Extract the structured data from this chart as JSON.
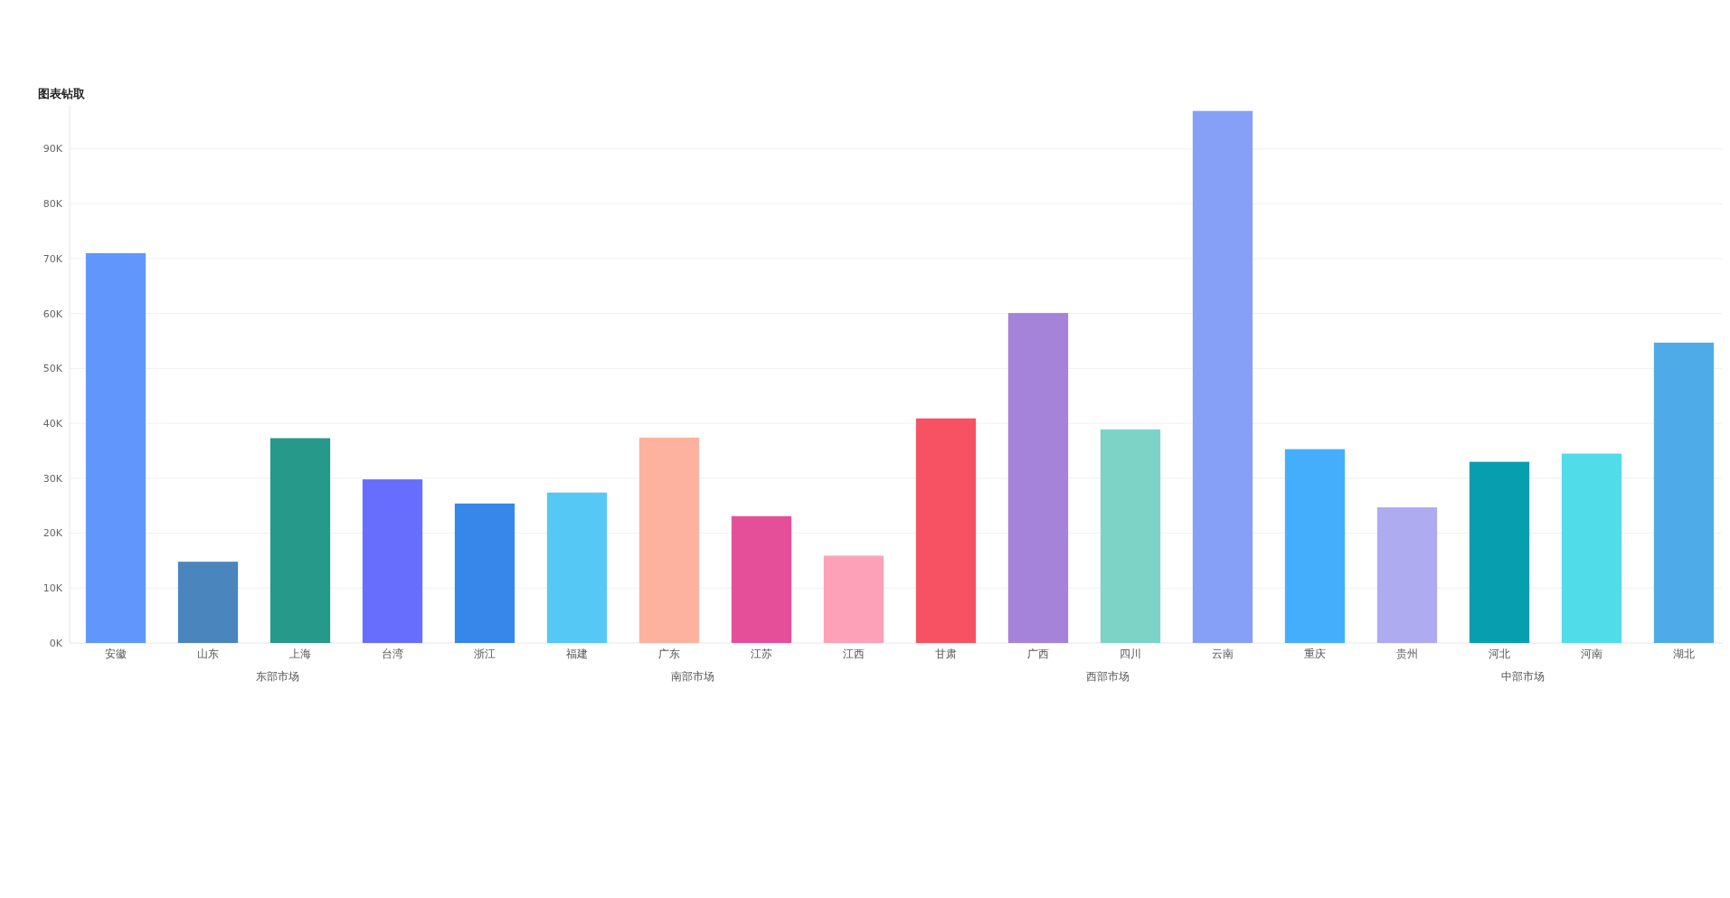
{
  "chart_data": {
    "type": "bar",
    "title": "图表钻取",
    "categories": [
      "安徽",
      "山东",
      "上海",
      "台湾",
      "浙江",
      "福建",
      "广东",
      "江苏",
      "江西",
      "甘肃",
      "广西",
      "四川",
      "云南",
      "重庆",
      "贵州",
      "河北",
      "河南",
      "湖北"
    ],
    "values": [
      71000,
      14800,
      37300,
      29800,
      25400,
      27400,
      37400,
      23100,
      15900,
      40900,
      60100,
      38900,
      96900,
      35300,
      24700,
      33000,
      34500,
      54700
    ],
    "colors": [
      "#6197fc",
      "#4a86bd",
      "#26998a",
      "#676efd",
      "#3687e9",
      "#56c8f6",
      "#fcb29f",
      "#e54f99",
      "#fca1b7",
      "#f65263",
      "#a483d8",
      "#7cd3c6",
      "#87a0f7",
      "#45aefc",
      "#aeabf1",
      "#079faf",
      "#51dcea",
      "#4fabe7"
    ],
    "ylim": [
      0,
      98000
    ],
    "yticks": [
      {
        "value": 0,
        "label": "0K"
      },
      {
        "value": 10000,
        "label": "10K"
      },
      {
        "value": 20000,
        "label": "20K"
      },
      {
        "value": 30000,
        "label": "30K"
      },
      {
        "value": 40000,
        "label": "40K"
      },
      {
        "value": 50000,
        "label": "50K"
      },
      {
        "value": 60000,
        "label": "60K"
      },
      {
        "value": 70000,
        "label": "70K"
      },
      {
        "value": 80000,
        "label": "80K"
      },
      {
        "value": 90000,
        "label": "90K"
      }
    ],
    "grid": "y",
    "annotations": [
      "东部市场",
      "南部市场",
      "西部市场",
      "中部市场"
    ]
  }
}
